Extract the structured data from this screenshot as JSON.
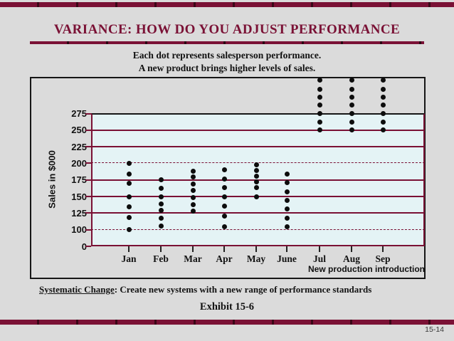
{
  "slide": {
    "title": "VARIANCE: HOW DO YOU ADJUST PERFORMANCE",
    "subtitle_line1": "Each dot represents salesperson performance.",
    "subtitle_line2": "A new product brings higher levels of sales.",
    "footer_label": "Systematic Change",
    "footer_rest": ":  Create new systems with a new range of performance standards",
    "exhibit": "Exhibit 15-6",
    "page_number": "15-14"
  },
  "colors": {
    "accent_maroon": "#7a1135",
    "slide_background": "#dbdbdb",
    "plot_background": "#e4f3f5",
    "dot": "#0d0d0d"
  },
  "chart_data": {
    "type": "scatter",
    "title": "",
    "xlabel": "",
    "ylabel": "Sales in $000",
    "x_note": "New production introduction",
    "categories": [
      "Jan",
      "Feb",
      "Mar",
      "Apr",
      "May",
      "June",
      "Jul",
      "Aug",
      "Sep"
    ],
    "y_tick_labels": [
      0,
      100,
      125,
      150,
      175,
      200,
      225,
      250,
      275
    ],
    "ylim_drawn": [
      0,
      275
    ],
    "axis_break": "y axis jumps from 0 to 100",
    "gridlines_solid": [
      125,
      150,
      175,
      225,
      250
    ],
    "gridlines_dashed": [
      100,
      200
    ],
    "grid": true,
    "legend": false,
    "series": [
      {
        "month": "Jan",
        "values": [
          200,
          184,
          170,
          150,
          134,
          118,
          100
        ]
      },
      {
        "month": "Feb",
        "values": [
          175,
          162,
          150,
          139,
          129,
          117,
          106
        ]
      },
      {
        "month": "Mar",
        "values": [
          188,
          179,
          169,
          159,
          148,
          138,
          128
        ]
      },
      {
        "month": "Apr",
        "values": [
          190,
          176,
          163,
          150,
          136,
          120,
          104
        ]
      },
      {
        "month": "May",
        "values": [
          198,
          189,
          181,
          172,
          163,
          150
        ]
      },
      {
        "month": "June",
        "values": [
          184,
          171,
          157,
          144,
          131,
          117,
          104
        ]
      },
      {
        "month": "Jul",
        "values": [
          325,
          312,
          300,
          288,
          275,
          262,
          250
        ]
      },
      {
        "month": "Aug",
        "values": [
          325,
          312,
          300,
          288,
          275,
          262,
          250
        ]
      },
      {
        "month": "Sep",
        "values": [
          325,
          312,
          300,
          288,
          275,
          262,
          250
        ]
      }
    ]
  }
}
